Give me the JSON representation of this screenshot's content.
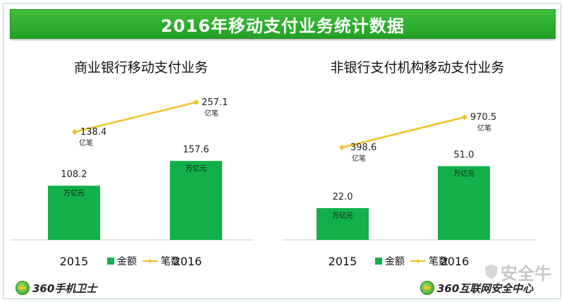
{
  "page_title": "2016年移动支付业务统计数据",
  "chart_data": [
    {
      "type": "bar",
      "title": "商业银行移动支付业务",
      "categories": [
        "2015",
        "2016"
      ],
      "series": [
        {
          "name": "金额",
          "type": "bar",
          "values": [
            108.2,
            157.6
          ],
          "unit": "万亿元",
          "color": "#11b04a"
        },
        {
          "name": "笔数",
          "type": "line",
          "values": [
            138.4,
            257.1
          ],
          "unit": "亿笔",
          "color": "#f2c02a"
        }
      ]
    },
    {
      "type": "bar",
      "title": "非银行支付机构移动支付业务",
      "categories": [
        "2015",
        "2016"
      ],
      "series": [
        {
          "name": "金额",
          "type": "bar",
          "values": [
            22.0,
            51.0
          ],
          "unit": "万亿元",
          "color": "#11b04a"
        },
        {
          "name": "笔数",
          "type": "line",
          "values": [
            398.6,
            970.5
          ],
          "unit": "亿笔",
          "color": "#f2c02a"
        }
      ]
    }
  ],
  "logos": {
    "left_text": "360手机卫士",
    "right_text": "360互联网安全中心",
    "watermark": "安全牛"
  }
}
